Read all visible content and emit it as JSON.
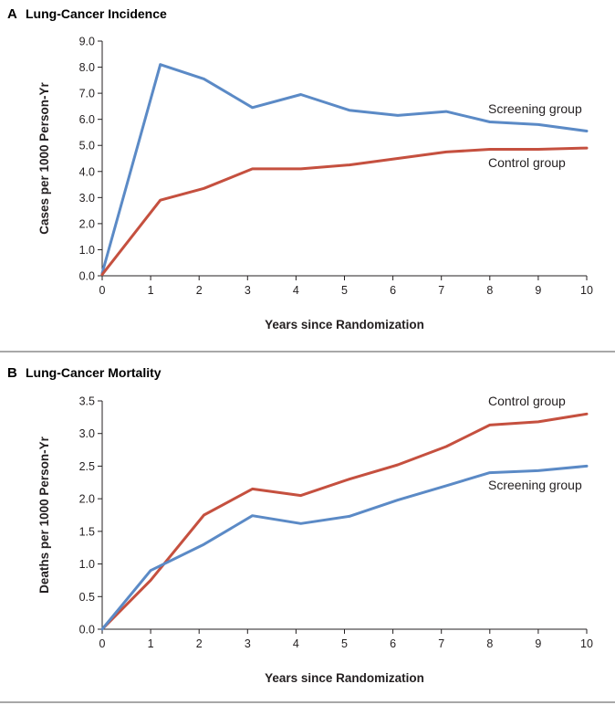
{
  "chart_data": [
    {
      "type": "line",
      "panel": "A",
      "title": "Lung-Cancer Incidence",
      "xlabel": "Years since Randomization",
      "ylabel": "Cases per 1000 Person-Yr",
      "xlim": [
        0,
        10
      ],
      "ylim": [
        0,
        9
      ],
      "xticks": [
        0,
        1,
        2,
        3,
        4,
        5,
        6,
        7,
        8,
        9,
        10
      ],
      "xtick_labels": [
        "0",
        "1",
        "2",
        "3",
        "4",
        "5",
        "6",
        "7",
        "8",
        "9",
        "10"
      ],
      "yticks": [
        0,
        1,
        2,
        3,
        4,
        5,
        6,
        7,
        8,
        9
      ],
      "ytick_labels": [
        "0.0",
        "1.0",
        "2.0",
        "3.0",
        "4.0",
        "5.0",
        "6.0",
        "7.0",
        "8.0",
        "9.0"
      ],
      "series": [
        {
          "name": "Screening group",
          "color": "#5b8ac6",
          "x": [
            0,
            1.2,
            2.1,
            3.1,
            4.1,
            5.1,
            6.1,
            7.1,
            8.0,
            9.0,
            10.0
          ],
          "values": [
            0.1,
            8.1,
            7.55,
            6.45,
            6.95,
            6.35,
            6.15,
            6.3,
            5.9,
            5.8,
            5.55
          ]
        },
        {
          "name": "Control group",
          "color": "#c5503f",
          "x": [
            0,
            1.2,
            2.1,
            3.1,
            4.1,
            5.1,
            6.1,
            7.1,
            8.0,
            9.0,
            10.0
          ],
          "values": [
            0.05,
            2.9,
            3.35,
            4.1,
            4.1,
            4.25,
            4.5,
            4.75,
            4.85,
            4.85,
            4.9
          ]
        }
      ]
    },
    {
      "type": "line",
      "panel": "B",
      "title": "Lung-Cancer Mortality",
      "xlabel": "Years since Randomization",
      "ylabel": "Deaths per 1000 Person-Yr",
      "xlim": [
        0,
        10
      ],
      "ylim": [
        0,
        3.5
      ],
      "xticks": [
        0,
        1,
        2,
        3,
        4,
        5,
        6,
        7,
        8,
        9,
        10
      ],
      "xtick_labels": [
        "0",
        "1",
        "2",
        "3",
        "4",
        "5",
        "6",
        "7",
        "8",
        "9",
        "10"
      ],
      "yticks": [
        0,
        0.5,
        1,
        1.5,
        2,
        2.5,
        3,
        3.5
      ],
      "ytick_labels": [
        "0.0",
        "0.5",
        "1.0",
        "1.5",
        "2.0",
        "2.5",
        "3.0",
        "3.5"
      ],
      "series": [
        {
          "name": "Control group",
          "color": "#c5503f",
          "x": [
            0,
            1.0,
            2.1,
            3.1,
            4.1,
            5.1,
            6.1,
            7.1,
            8.0,
            9.0,
            10.0
          ],
          "values": [
            0.0,
            0.75,
            1.75,
            2.15,
            2.05,
            2.3,
            2.52,
            2.8,
            3.13,
            3.18,
            3.3
          ]
        },
        {
          "name": "Screening group",
          "color": "#5b8ac6",
          "x": [
            0,
            1.0,
            2.1,
            3.1,
            4.1,
            5.1,
            6.1,
            7.1,
            8.0,
            9.0,
            10.0
          ],
          "values": [
            0.0,
            0.9,
            1.3,
            1.74,
            1.62,
            1.73,
            1.98,
            2.2,
            2.4,
            2.43,
            2.5
          ]
        }
      ]
    }
  ]
}
